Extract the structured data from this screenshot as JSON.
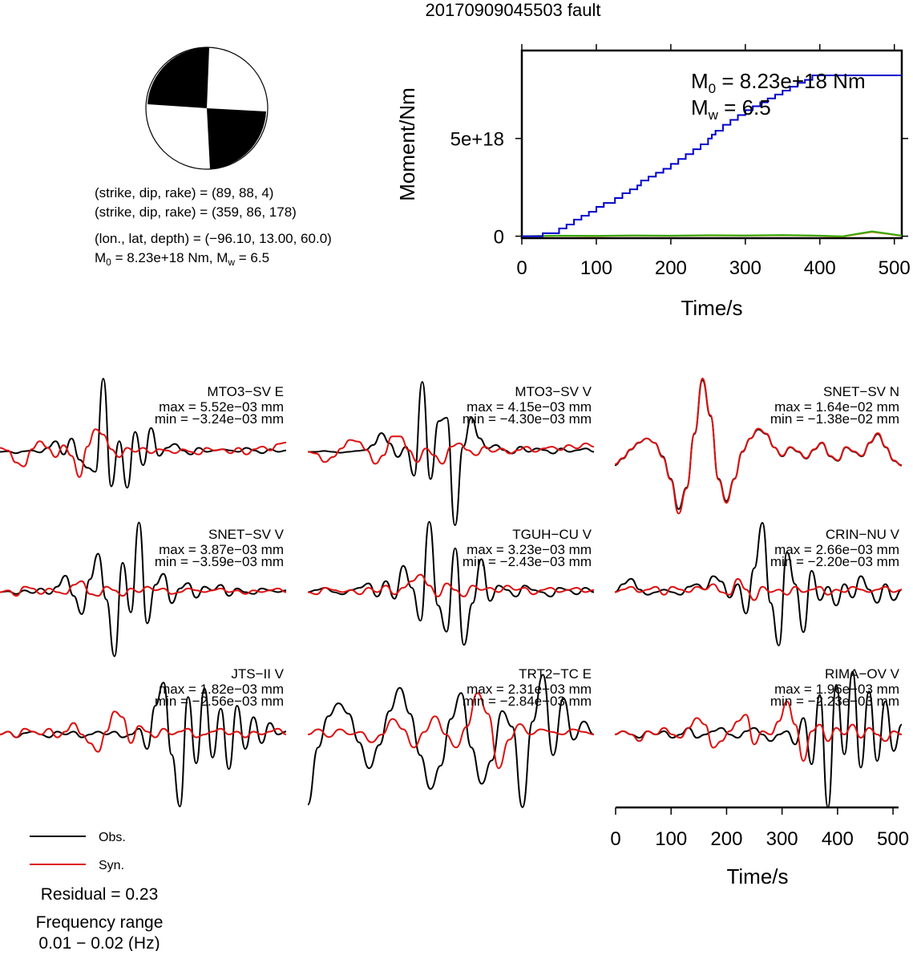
{
  "title": "20170909045503 fault",
  "mechanism": {
    "plane1": "(strike, dip, rake) = (89, 88, 4)",
    "plane2": "(strike, dip, rake) = (359, 86, 178)",
    "location": "(lon., lat, depth) = (−96.10, 13.00, 60.0)",
    "moment_line": {
      "m0": "M",
      "m0_sub": "0",
      "m0_rest": " = 8.23e+18 Nm, M",
      "mw_sub": "w",
      "mw_rest": " = 6.5"
    }
  },
  "legend": {
    "obs": "Obs.",
    "syn": "Syn.",
    "residual": "Residual = 0.23",
    "freq_label": "Frequency range",
    "freq_value": "0.01 − 0.02 (Hz)"
  },
  "colors": {
    "obs": "#000000",
    "syn": "#dd1111",
    "moment": "#0000cc",
    "rate1": "#cc7700",
    "rate2": "#33aa00"
  },
  "chart_data": [
    {
      "type": "line",
      "xlabel": "Time/s",
      "ylabel": "Moment/Nm",
      "xlim": [
        0,
        510
      ],
      "ylim": [
        -1e+17,
        9.5e+18
      ],
      "xticks": [
        0,
        100,
        200,
        300,
        400,
        500
      ],
      "yticks": [
        0,
        5e+18
      ],
      "ytick_labels": [
        "0",
        "5e+18"
      ],
      "annotation": {
        "m0_prefix": "M",
        "m0_sub": "0",
        "m0_value": " = 8.23e+18 Nm",
        "mw_prefix": "M",
        "mw_sub": "w",
        "mw_value": " = 6.5"
      },
      "series": [
        {
          "role": "cumulative_moment",
          "x": [
            0,
            28,
            50,
            60,
            70,
            80,
            90,
            100,
            110,
            125,
            135,
            145,
            155,
            160,
            170,
            180,
            190,
            200,
            210,
            220,
            230,
            240,
            250,
            255,
            260,
            270,
            280,
            290,
            300,
            310,
            320,
            330,
            340,
            350,
            360,
            370,
            380,
            390,
            510
          ],
          "y": [
            0,
            1.5e+17,
            4e+17,
            6e+17,
            8.5e+17,
            1.05e+18,
            1.25e+18,
            1.5e+18,
            1.7e+18,
            1.95e+18,
            2.2e+18,
            2.4e+18,
            2.6e+18,
            2.85e+18,
            3.05e+18,
            3.25e+18,
            3.45e+18,
            3.7e+18,
            3.95e+18,
            4.2e+18,
            4.45e+18,
            4.7e+18,
            5e+18,
            5.2e+18,
            5.4e+18,
            5.7e+18,
            5.95e+18,
            6.2e+18,
            6.45e+18,
            6.65e+18,
            6.85e+18,
            7.05e+18,
            7.25e+18,
            7.45e+18,
            7.65e+18,
            7.85e+18,
            8e+18,
            8.23e+18,
            8.23e+18
          ]
        },
        {
          "role": "moment_rate_1",
          "x": [
            0,
            50,
            100,
            150,
            200,
            250,
            300,
            350,
            400,
            430,
            450,
            470,
            490,
            510
          ],
          "y": [
            0,
            2e+16,
            1e+16,
            3e+16,
            2e+16,
            4e+16,
            3e+16,
            5e+16,
            2e+16,
            -2e+16,
            1e+17,
            2.2e+17,
            1.2e+17,
            2e+16
          ]
        },
        {
          "role": "moment_rate_2",
          "x": [
            0,
            50,
            100,
            150,
            200,
            250,
            300,
            350,
            400,
            430,
            450,
            470,
            490,
            510
          ],
          "y": [
            0,
            3e+16,
            2e+16,
            4e+16,
            3e+16,
            5e+16,
            4e+16,
            6e+16,
            3e+16,
            -1e+16,
            1.2e+17,
            2.5e+17,
            1.4e+17,
            3e+16
          ]
        }
      ]
    },
    {
      "type": "line",
      "xlabel": "Time/s",
      "xlim": [
        0,
        510
      ],
      "xticks": [
        0,
        100,
        200,
        300,
        400,
        500
      ],
      "panels": [
        {
          "station": "MTO3−SV E",
          "max": "max = 5.52e−03 mm",
          "min": "min = −3.24e−03 mm",
          "vmax": 5.52,
          "vmin": -3.24,
          "obs": [
            0,
            0.05,
            -0.1,
            0.05,
            0.1,
            -0.05,
            0.3,
            0.8,
            -0.2,
            1.0,
            -0.6,
            -1.2,
            -1.5,
            5.5,
            -2.6,
            0.8,
            -2.7,
            1.5,
            -1.0,
            1.8,
            -0.3,
            0.3,
            0.6,
            0.1,
            -0.2,
            0.3,
            0.0,
            0.1,
            0.2,
            0.1,
            0.0,
            0.3,
            0.1,
            -0.1,
            0.2,
            0.0,
            0.1
          ],
          "syn": [
            0.3,
            0.1,
            -0.8,
            -1.1,
            0.2,
            0.8,
            0.3,
            -0.4,
            0.5,
            -0.3,
            -1.9,
            0.4,
            1.7,
            1.3,
            0.2,
            -0.4,
            0.3,
            0.0,
            0.3,
            -0.1,
            0.2,
            0.1,
            -0.1,
            0.2,
            0.0,
            -0.2,
            0.3,
            0.1,
            0.2,
            -0.1,
            0.3,
            -0.2,
            0.2,
            0.4,
            0.1,
            0.6,
            0.7
          ]
        },
        {
          "station": "MTO3−SV V",
          "max": "max = 4.15e−03 mm",
          "min": "min = −4.30e−03 mm",
          "vmax": 4.15,
          "vmin": -4.3,
          "obs": [
            0,
            0,
            0.05,
            0,
            -0.05,
            0,
            0.05,
            0.1,
            0.4,
            1.1,
            0.5,
            -0.3,
            0.3,
            -1.4,
            4.1,
            -1.6,
            1.8,
            2.0,
            -4.3,
            0.3,
            2.0,
            0.8,
            0.2,
            0.4,
            0.1,
            -0.1,
            0.3,
            0.0,
            0.2,
            0.1,
            -0.1,
            0.2,
            0.0,
            0.1,
            0.2,
            0.0
          ],
          "syn": [
            0,
            -0.1,
            -0.6,
            -0.3,
            0.2,
            0.7,
            0.6,
            0.1,
            -0.7,
            -0.2,
            0.9,
            0.9,
            0.1,
            -0.6,
            0.2,
            -0.2,
            -0.7,
            0.3,
            0.5,
            0.1,
            -0.2,
            0.3,
            0.0,
            0.2,
            -0.1,
            0.1,
            0.3,
            0.0,
            0.2,
            0.3,
            0.1,
            0.4,
            0.2,
            0.5,
            0.3
          ]
        },
        {
          "station": "SNET−SV N",
          "max": "max = 1.64e−02 mm",
          "min": "min = −1.38e−02 mm",
          "vmax": 16.4,
          "vmin": -13.8,
          "obs": [
            -3.0,
            -1.5,
            0.5,
            2.0,
            3.0,
            2.0,
            -1.0,
            -6.0,
            -12.8,
            -8.0,
            4.0,
            16.0,
            8.0,
            -6.0,
            -11.0,
            -6.0,
            0.0,
            3.0,
            5.0,
            4.0,
            1.0,
            -1.0,
            1.0,
            0.0,
            -1.5,
            0.5,
            2.0,
            -1.0,
            -2.0,
            1.0,
            0.0,
            -1.0,
            2.0,
            4.0,
            1.0,
            -2.0,
            -3.0
          ],
          "syn": [
            -2.8,
            -1.4,
            0.6,
            2.1,
            3.0,
            2.0,
            -1.2,
            -6.2,
            -13.8,
            -8.2,
            4.2,
            16.4,
            8.2,
            -6.2,
            -11.4,
            -6.1,
            0.1,
            3.0,
            5.2,
            4.1,
            1.0,
            -0.9,
            1.1,
            0.1,
            -1.4,
            0.6,
            2.1,
            -0.9,
            -1.9,
            1.1,
            0.1,
            -0.9,
            2.1,
            4.2,
            1.1,
            -1.9,
            -3.1
          ]
        },
        {
          "station": "SNET−SV V",
          "max": "max = 3.87e−03 mm",
          "min": "min = −3.59e−03 mm",
          "vmax": 3.87,
          "vmin": -3.59,
          "obs": [
            0,
            0.05,
            -0.1,
            0.1,
            -0.05,
            0.2,
            -0.1,
            0.3,
            0.9,
            -0.2,
            -1.2,
            0.7,
            2.1,
            -0.4,
            -3.5,
            1.6,
            -1.1,
            3.8,
            -1.7,
            0.4,
            1.0,
            -0.6,
            0.2,
            0.5,
            -0.3,
            0.3,
            0.1,
            0.4,
            -0.2,
            0.2,
            0.0,
            -0.1,
            0.2,
            0.1,
            0.0,
            0.1
          ],
          "syn": [
            0,
            0.1,
            -0.2,
            0.3,
            0.2,
            -0.1,
            0.2,
            0.0,
            -0.1,
            0.4,
            0.6,
            -0.1,
            -0.2,
            0.3,
            0.1,
            -0.2,
            0.2,
            0.0,
            0.3,
            0.1,
            0.2,
            -0.1,
            0.0,
            0.2,
            0.1,
            0.0,
            0.1,
            0.2,
            0.0,
            0.1,
            -0.1,
            0.1,
            0.0,
            0.1,
            0.2,
            0.0
          ]
        },
        {
          "station": "TGUH−CU V",
          "max": "max = 3.23e−03 mm",
          "min": "min = −2.43e−03 mm",
          "vmax": 3.23,
          "vmin": -2.43,
          "obs": [
            0,
            0.1,
            0.2,
            0.0,
            -0.1,
            0.1,
            0.2,
            0.4,
            -0.2,
            0.5,
            -0.3,
            1.2,
            0.2,
            -1.3,
            3.2,
            -0.6,
            -1.8,
            2.0,
            -2.4,
            -0.5,
            1.5,
            -0.4,
            0.3,
            0.1,
            -0.2,
            0.3,
            0.1,
            0.0,
            -0.2,
            0.2,
            0.1,
            -0.1,
            0.2,
            0.0
          ],
          "syn": [
            0,
            -0.1,
            0.2,
            0.1,
            0.0,
            0.1,
            -0.1,
            0.2,
            0.0,
            0.3,
            -0.1,
            0.2,
            0.5,
            0.8,
            0.3,
            -0.2,
            0.4,
            0.1,
            -0.2,
            0.3,
            0.1,
            0.2,
            0.0,
            0.3,
            0.1,
            0.2,
            -0.1,
            0.1,
            0.2,
            0.0,
            0.1,
            0.2,
            0.0,
            0.1
          ]
        },
        {
          "station": "CRIN−NU V",
          "max": "max = 2.66e−03 mm",
          "min": "min = −2.20e−03 mm",
          "vmax": 2.66,
          "vmin": -2.2,
          "obs": [
            0,
            0.3,
            0.5,
            0.1,
            -0.1,
            0.0,
            0.1,
            0.0,
            -0.1,
            0.2,
            0.3,
            0.1,
            0.6,
            0.4,
            -0.2,
            0.3,
            -0.8,
            0.9,
            2.6,
            -0.4,
            -2.0,
            1.5,
            0.3,
            -1.5,
            0.8,
            -0.3,
            0.2,
            -0.5,
            0.3,
            -0.2,
            0.6,
            0.1,
            -0.4,
            0.3,
            -0.3,
            0.1
          ],
          "syn": [
            0,
            0.1,
            0.2,
            0.0,
            0.1,
            0.2,
            -0.1,
            0.2,
            0.1,
            0.0,
            0.2,
            0.1,
            0.3,
            0.0,
            -0.1,
            0.5,
            0.1,
            -0.3,
            0.2,
            0.0,
            0.1,
            -0.1,
            0.2,
            0.0,
            0.1,
            0.2,
            -0.1,
            0.1,
            0.0,
            0.2,
            0.1,
            0.0,
            0.1,
            0.2,
            0.0,
            0.1
          ]
        },
        {
          "station": "JTS−II V",
          "max": "max = 1.82e−03 mm",
          "min": "min = −2.56e−03 mm",
          "vmax": 1.82,
          "vmin": -2.56,
          "obs": [
            0,
            0.1,
            -0.1,
            0.05,
            0.1,
            0.0,
            -0.1,
            0.1,
            0.0,
            0.1,
            -0.1,
            0.0,
            0.1,
            0.0,
            0.1,
            -0.1,
            0.0,
            0.2,
            -0.5,
            1.0,
            1.8,
            -0.7,
            -2.5,
            1.3,
            -1.0,
            1.6,
            -0.8,
            0.9,
            -1.2,
            1.0,
            -0.5,
            0.6,
            -0.3,
            0.4,
            0.0,
            0.1
          ],
          "syn": [
            0,
            0.1,
            -0.1,
            0.2,
            0.1,
            0.0,
            0.2,
            -0.1,
            0.1,
            0.4,
            0.0,
            -0.3,
            -0.6,
            0.1,
            0.8,
            0.6,
            -0.3,
            0.3,
            0.1,
            -0.1,
            0.2,
            0.0,
            0.1,
            0.2,
            -0.1,
            0.0,
            0.1,
            0.2,
            0.0,
            0.1,
            -0.1,
            0.1,
            0.0,
            0.1,
            0.2,
            0.0
          ]
        },
        {
          "station": "TRT2−TC E",
          "max": "max = 2.31e−03 mm",
          "min": "min = −2.84e−03 mm",
          "vmax": 2.31,
          "vmin": -2.84,
          "obs": [
            -2.7,
            -0.5,
            0.7,
            1.2,
            0.8,
            -0.3,
            -1.3,
            -0.4,
            0.9,
            1.8,
            0.8,
            -0.8,
            -2.1,
            -1.2,
            0.6,
            1.6,
            -0.5,
            -1.9,
            -1.0,
            0.9,
            0.3,
            -2.8,
            0.5,
            2.3,
            -0.8,
            1.4,
            -0.2,
            0.5,
            0.0
          ],
          "syn": [
            0,
            0.2,
            -0.1,
            0.2,
            0.0,
            0.1,
            -0.3,
            0.0,
            0.6,
            0.2,
            -0.5,
            0.1,
            0.7,
            0.0,
            -0.5,
            0.3,
            1.6,
            0.8,
            -1.3,
            -0.2,
            0.4,
            0.0,
            0.2,
            0.1,
            0.0,
            0.2,
            0.1,
            0.0
          ]
        },
        {
          "station": "RIMA−OV V",
          "max": "max = 1.96e−03 mm",
          "min": "min = −2.23e−03 mm",
          "vmax": 1.96,
          "vmin": -2.23,
          "obs": [
            0,
            0.1,
            0.0,
            -0.1,
            0.1,
            0.0,
            0.1,
            -0.1,
            0.0,
            0.2,
            -0.1,
            0.0,
            0.1,
            0.2,
            0.0,
            -0.1,
            0.1,
            0.2,
            0.0,
            -0.2,
            0.0,
            0.1,
            -0.3,
            0.5,
            -0.9,
            1.2,
            -2.2,
            1.5,
            -0.6,
            1.9,
            -1.0,
            1.3,
            -0.8,
            1.0,
            -0.5,
            0.3
          ],
          "syn": [
            0,
            0.1,
            0.0,
            -0.2,
            0.1,
            0.0,
            0.2,
            0.0,
            -0.1,
            0.2,
            0.5,
            0.3,
            -0.4,
            -0.2,
            0.1,
            0.4,
            0.6,
            -0.3,
            0.1,
            0.0,
            0.4,
            1.0,
            0.3,
            -0.8,
            0.1,
            0.3,
            -0.2,
            0.2,
            0.0,
            0.3,
            -0.1,
            0.2,
            0.0,
            -0.2,
            0.1,
            0.0
          ]
        }
      ]
    }
  ]
}
